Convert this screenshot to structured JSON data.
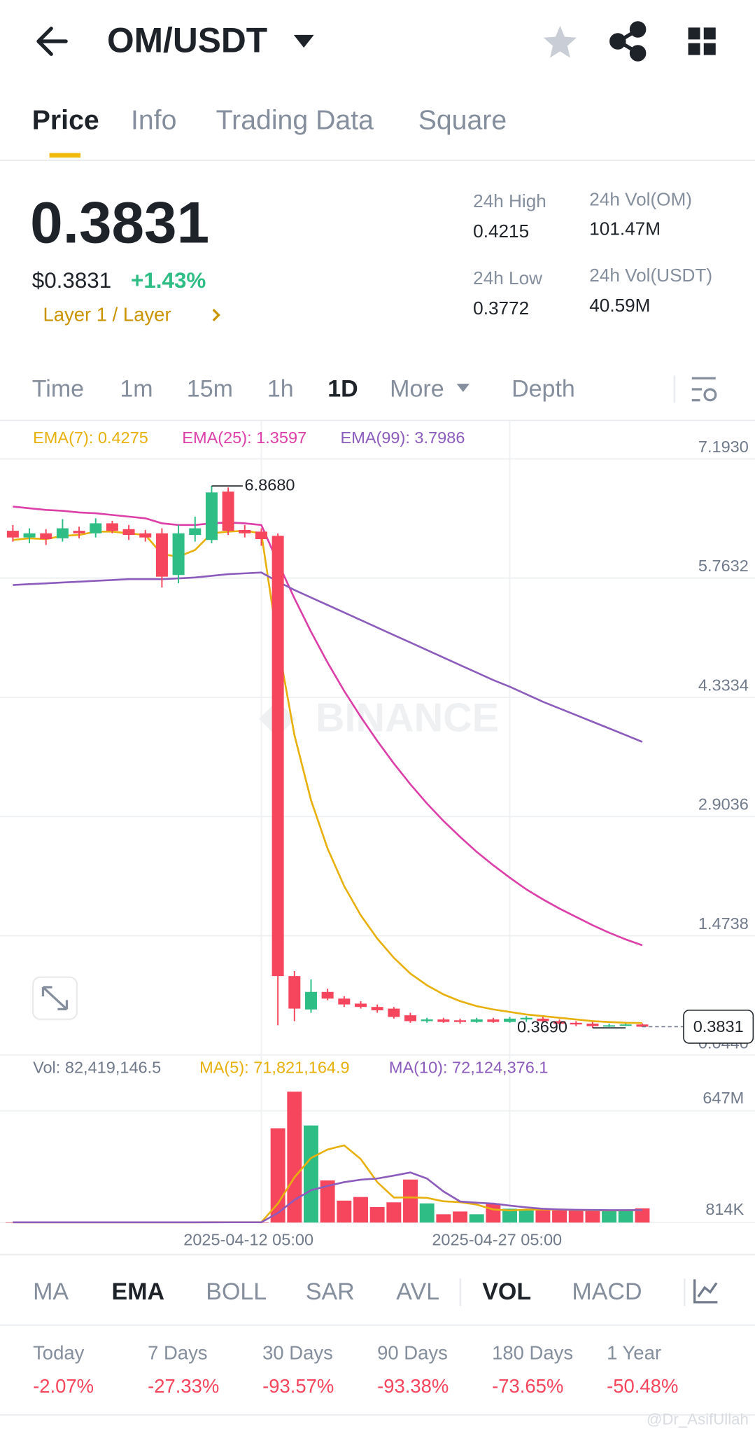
{
  "header": {
    "title": "OM/USDT"
  },
  "tabs": {
    "items": [
      "Price",
      "Info",
      "Trading Data",
      "Square"
    ],
    "active": 0
  },
  "price": {
    "last": "0.3831",
    "usd": "$0.3831",
    "change": "+1.43%",
    "sector": "Layer 1 / Layer"
  },
  "stats": [
    {
      "label": "24h High",
      "value": "0.4215"
    },
    {
      "label": "24h Vol(OM)",
      "value": "101.47M"
    },
    {
      "label": "24h Low",
      "value": "0.3772"
    },
    {
      "label": "24h Vol(USDT)",
      "value": "40.59M"
    }
  ],
  "intervals": {
    "items": [
      "Time",
      "1m",
      "15m",
      "1h",
      "1D",
      "More",
      "Depth"
    ],
    "active": 4
  },
  "watermark": "BINANCE",
  "chart_data": [
    {
      "type": "candlestick",
      "up_color": "#2ebd85",
      "down_color": "#f6465d",
      "grid": true,
      "categories": [
        null,
        null,
        null,
        null,
        null,
        null,
        null,
        null,
        null,
        null,
        null,
        null,
        null,
        null,
        null,
        "2025-04-12 05:00",
        null,
        null,
        null,
        null,
        null,
        null,
        null,
        null,
        null,
        null,
        null,
        null,
        null,
        null,
        "2025-04-27 05:00",
        null,
        null,
        null,
        null,
        null,
        null,
        null,
        null
      ],
      "open": [
        6.33,
        6.25,
        6.3,
        6.24,
        6.33,
        6.3,
        6.42,
        6.35,
        6.3,
        6.3,
        5.8,
        6.28,
        6.22,
        6.8,
        6.34,
        6.32,
        6.27,
        0.99,
        0.59,
        0.8,
        0.72,
        0.66,
        0.62,
        0.6,
        0.52,
        0.45,
        0.47,
        0.46,
        0.44,
        0.47,
        0.44,
        0.47,
        0.48,
        0.45,
        0.43,
        0.42,
        0.39,
        0.4,
        0.41
      ],
      "high": [
        6.4,
        6.36,
        6.35,
        6.47,
        6.38,
        6.48,
        6.45,
        6.4,
        6.34,
        6.36,
        6.4,
        6.5,
        6.868,
        6.85,
        6.4,
        6.36,
        6.3,
        1.05,
        0.95,
        0.84,
        0.75,
        0.69,
        0.65,
        0.62,
        0.55,
        0.49,
        0.49,
        0.48,
        0.49,
        0.49,
        0.5,
        0.51,
        0.5,
        0.47,
        0.45,
        0.44,
        0.42,
        0.42,
        0.4215
      ],
      "low": [
        6.2,
        6.18,
        6.16,
        6.2,
        6.24,
        6.25,
        6.3,
        6.22,
        6.2,
        5.65,
        5.7,
        6.2,
        6.18,
        6.28,
        6.25,
        6.15,
        0.4,
        0.45,
        0.55,
        0.7,
        0.62,
        0.6,
        0.55,
        0.48,
        0.43,
        0.43,
        0.43,
        0.42,
        0.43,
        0.43,
        0.43,
        0.44,
        0.44,
        0.4,
        0.39,
        0.369,
        0.38,
        0.39,
        0.3772
      ],
      "close": [
        6.25,
        6.3,
        6.23,
        6.36,
        6.3,
        6.42,
        6.33,
        6.28,
        6.25,
        5.78,
        6.3,
        6.36,
        6.79,
        6.33,
        6.3,
        6.23,
        0.99,
        0.6,
        0.8,
        0.72,
        0.65,
        0.62,
        0.58,
        0.5,
        0.45,
        0.47,
        0.44,
        0.44,
        0.47,
        0.44,
        0.48,
        0.49,
        0.45,
        0.42,
        0.41,
        0.39,
        0.4,
        0.41,
        0.3831
      ],
      "series": [
        {
          "name": "EMA(7): 0.4275",
          "color": "#e8b00c",
          "values": [
            6.22,
            6.24,
            6.23,
            6.27,
            6.28,
            6.32,
            6.32,
            6.3,
            6.28,
            6.05,
            6.02,
            6.1,
            6.3,
            6.32,
            6.33,
            6.3,
            4.98,
            3.88,
            3.1,
            2.52,
            2.07,
            1.72,
            1.44,
            1.21,
            1.02,
            0.88,
            0.77,
            0.69,
            0.63,
            0.59,
            0.56,
            0.53,
            0.51,
            0.49,
            0.47,
            0.45,
            0.44,
            0.43,
            0.4275
          ]
        },
        {
          "name": "EMA(25): 1.3597",
          "color": "#dc3fa8",
          "values": [
            6.62,
            6.6,
            6.58,
            6.57,
            6.55,
            6.54,
            6.52,
            6.5,
            6.48,
            6.42,
            6.4,
            6.4,
            6.42,
            6.43,
            6.42,
            6.4,
            5.95,
            5.52,
            5.12,
            4.75,
            4.41,
            4.1,
            3.81,
            3.54,
            3.29,
            3.06,
            2.85,
            2.66,
            2.48,
            2.32,
            2.17,
            2.03,
            1.91,
            1.8,
            1.7,
            1.6,
            1.51,
            1.43,
            1.3597
          ]
        },
        {
          "name": "EMA(99): 3.7986",
          "color": "#8c5cbc",
          "values": [
            5.68,
            5.69,
            5.7,
            5.71,
            5.72,
            5.73,
            5.74,
            5.75,
            5.75,
            5.75,
            5.76,
            5.77,
            5.79,
            5.81,
            5.82,
            5.83,
            5.72,
            5.62,
            5.53,
            5.44,
            5.35,
            5.26,
            5.17,
            5.08,
            4.99,
            4.9,
            4.81,
            4.72,
            4.63,
            4.54,
            4.46,
            4.37,
            4.28,
            4.2,
            4.12,
            4.04,
            3.96,
            3.88,
            3.7986
          ]
        }
      ],
      "ylim": [
        0.044,
        7.643
      ],
      "yticks": [
        {
          "value": 7.193,
          "label": "7.1930"
        },
        5.7632,
        4.3334,
        2.9036,
        1.4738,
        {
          "value": 0.044,
          "label": "0.0440"
        }
      ],
      "high_marker": {
        "value": 6.868,
        "label": "6.8680"
      },
      "low_marker": {
        "value": 0.369,
        "label": "0.3690"
      },
      "last_marker": {
        "value": 0.3831,
        "label": "0.3831"
      }
    },
    {
      "type": "volume",
      "grid": true,
      "values": [
        1200000,
        900000,
        1100000,
        1500000,
        1000000,
        1300000,
        1200000,
        900000,
        1000000,
        2100000,
        1800000,
        1400000,
        2500000,
        2200000,
        1300000,
        1600000,
        546000000,
        758000000,
        562000000,
        244000000,
        127000000,
        148000000,
        90000000,
        117000000,
        249000000,
        111000000,
        48000000,
        64000000,
        48000000,
        111000000,
        80000000,
        70000000,
        72000000,
        70000000,
        69000000,
        75000000,
        66000000,
        74000000,
        82419146.5
      ],
      "series": [
        {
          "name": "Vol: 82,419,146.5",
          "color": "#707a8a"
        },
        {
          "name": "MA(5): 71,821,164.9",
          "color": "#e8b00c",
          "values": [
            1100000,
            1100000,
            1100000,
            1200000,
            1100000,
            1200000,
            1200000,
            1200000,
            1100000,
            1300000,
            1400000,
            1500000,
            1800000,
            2000000,
            1900000,
            1800000,
            110000000,
            262000000,
            374000000,
            423000000,
            447000000,
            368000000,
            234000000,
            145000000,
            146000000,
            143000000,
            123000000,
            118000000,
            104000000,
            76000000,
            70000000,
            75000000,
            76000000,
            75000000,
            72000000,
            71000000,
            70000000,
            71000000,
            71821164.9
          ]
        },
        {
          "name": "MA(10): 72,124,376.1",
          "color": "#8c5cbc",
          "values": [
            1200000,
            1200000,
            1100000,
            1100000,
            1200000,
            1200000,
            1200000,
            1200000,
            1200000,
            1300000,
            1300000,
            1300000,
            1500000,
            1600000,
            1600000,
            1600000,
            55000000,
            131000000,
            187000000,
            212000000,
            234000000,
            248000000,
            255000000,
            272000000,
            290000000,
            255000000,
            180000000,
            122000000,
            115000000,
            110000000,
            98000000,
            88000000,
            80000000,
            76000000,
            74000000,
            73000000,
            72000000,
            72000000,
            72124376.1
          ]
        }
      ],
      "ylim": [
        0,
        928000000
      ],
      "yticks": [
        {
          "value": 647000000,
          "label": "647M"
        },
        {
          "value": 814000,
          "label": "814K"
        }
      ]
    }
  ],
  "indicators": {
    "items": [
      "MA",
      "EMA",
      "BOLL",
      "SAR",
      "AVL",
      "VOL",
      "MACD"
    ],
    "active": [
      1,
      5
    ]
  },
  "performance": [
    {
      "period": "Today",
      "change": "-2.07%"
    },
    {
      "period": "7 Days",
      "change": "-27.33%"
    },
    {
      "period": "30 Days",
      "change": "-93.57%"
    },
    {
      "period": "90 Days",
      "change": "-93.38%"
    },
    {
      "period": "180 Days",
      "change": "-73.65%"
    },
    {
      "period": "1 Year",
      "change": "-50.48%"
    }
  ],
  "credit": "@Dr_AsifUllah"
}
